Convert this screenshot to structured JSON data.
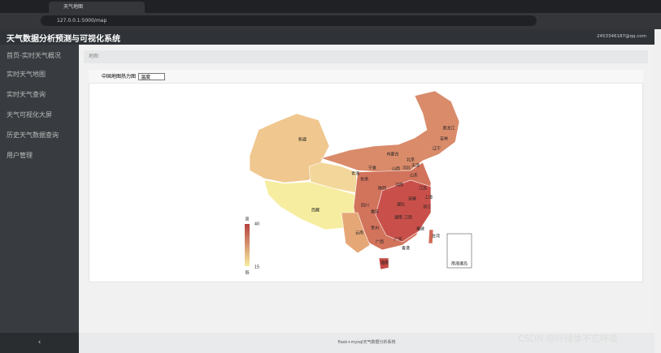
{
  "browser": {
    "tab_title": "天气地图",
    "url": "127.0.0.1:5000/map"
  },
  "header": {
    "title": "天气数据分析预测与可视化系统",
    "user": "2453346187@qq.com"
  },
  "sidebar": {
    "items": [
      "首页-实时天气概况",
      "实时天气地图",
      "实时天气查询",
      "天气可视化大屏",
      "历史天气数据查询",
      "用户管理"
    ],
    "collapse": "‹"
  },
  "breadcrumb": "地图",
  "panel": {
    "title": "中国地图热力图",
    "select": "温度"
  },
  "map": {
    "legend": {
      "high": "高",
      "max": "40",
      "min": "15",
      "low": "低"
    },
    "labels": [
      "新疆",
      "西藏",
      "青海",
      "甘肃",
      "内蒙古",
      "黑龙江",
      "吉林",
      "辽宁",
      "北京",
      "天津",
      "河北",
      "山西",
      "山东",
      "宁夏",
      "陕西",
      "河南",
      "江苏",
      "安徽",
      "上海",
      "四川",
      "重庆",
      "湖北",
      "浙江",
      "江西",
      "湖南",
      "贵州",
      "云南",
      "广西",
      "广东",
      "福建",
      "台湾",
      "香港",
      "海南"
    ],
    "inset": "南海诸岛"
  },
  "footer": "flask+mysql天气数据分析系统",
  "watermark": "CSDN @叶绿体不忘呼吸"
}
